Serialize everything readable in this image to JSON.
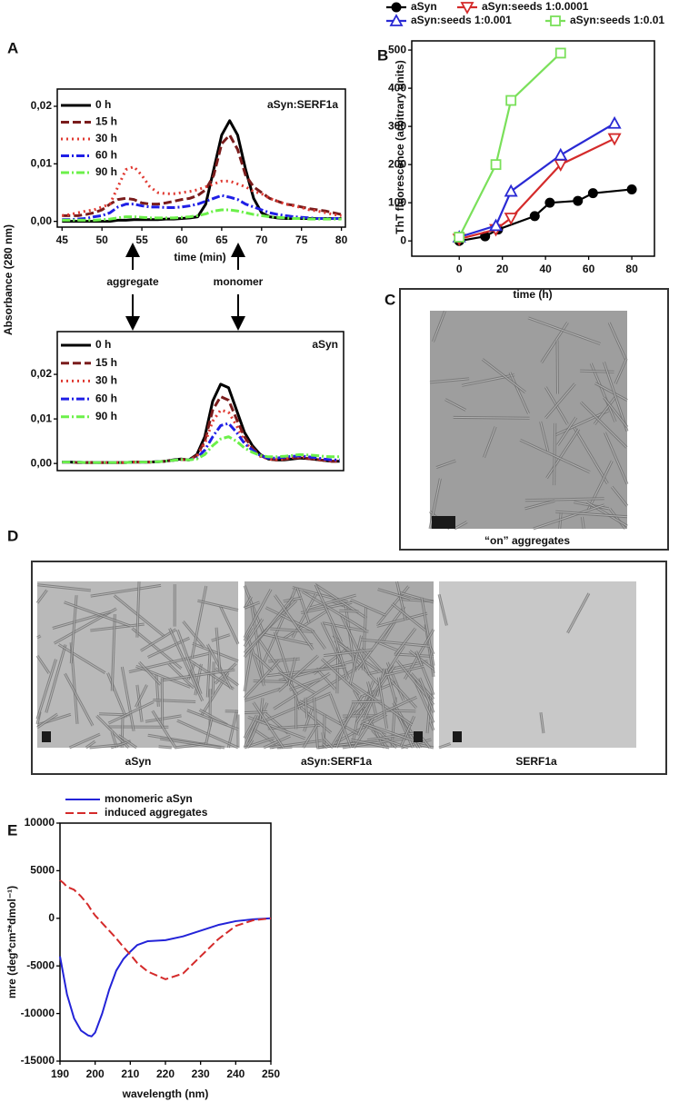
{
  "panel_labels": [
    "A",
    "B",
    "C",
    "D",
    "E"
  ],
  "panel_a": {
    "arrows": [
      "aggregate",
      "monomer"
    ]
  },
  "panel_c": {
    "caption": "“on” aggregates"
  },
  "panel_d": {
    "captions": [
      "aSyn",
      "aSyn:SERF1a",
      "SERF1a"
    ]
  },
  "chart_data": [
    {
      "type": "line",
      "y_label": "Absorbance (280 nm)",
      "x_label": "time (min)",
      "annotation": "aSyn:SERF1a",
      "x": [
        45,
        46,
        47,
        48,
        49,
        50,
        51,
        52,
        53,
        54,
        55,
        56,
        57,
        58,
        59,
        60,
        61,
        62,
        63,
        64,
        65,
        66,
        67,
        68,
        69,
        70,
        71,
        72,
        73,
        74,
        75,
        76,
        77,
        78,
        79,
        80
      ],
      "xlim": [
        44.4,
        80.5
      ],
      "xticks": [
        45,
        50,
        55,
        60,
        65,
        70,
        75,
        80
      ],
      "ylim": [
        -0.001,
        0.023
      ],
      "yticks": [
        {
          "value": 0,
          "label": "0,00"
        },
        {
          "value": 0.01,
          "label": "0,01"
        },
        {
          "value": 0.02,
          "label": "0,02"
        }
      ],
      "series": [
        {
          "name": "0 h",
          "color": "#000000",
          "dash": "solid",
          "values": [
            0,
            0,
            0,
            0,
            0,
            0,
            0,
            0.0002,
            0.0002,
            0.0003,
            0.0003,
            0.0003,
            0.0003,
            0.0004,
            0.0004,
            0.0005,
            0.0006,
            0.0008,
            0.003,
            0.009,
            0.015,
            0.0175,
            0.015,
            0.009,
            0.004,
            0.0015,
            0.0008,
            0.0006,
            0.0005,
            0.0005,
            0.0005,
            0.0005,
            0.0005,
            0.0005,
            0.0005,
            0.0005
          ]
        },
        {
          "name": "15 h",
          "color": "#7a1c1c",
          "dash": "dash",
          "values": [
            0.001,
            0.001,
            0.001,
            0.0012,
            0.0015,
            0.002,
            0.003,
            0.0038,
            0.004,
            0.0038,
            0.0032,
            0.003,
            0.003,
            0.0032,
            0.0035,
            0.0038,
            0.004,
            0.0045,
            0.0055,
            0.008,
            0.0135,
            0.015,
            0.0125,
            0.008,
            0.006,
            0.005,
            0.004,
            0.0035,
            0.003,
            0.0028,
            0.0025,
            0.0022,
            0.002,
            0.0018,
            0.0015,
            0.0012
          ]
        },
        {
          "name": "30 h",
          "color": "#e03a32",
          "dash": "dot",
          "values": [
            0.001,
            0.0012,
            0.0015,
            0.0018,
            0.002,
            0.0025,
            0.003,
            0.006,
            0.009,
            0.0095,
            0.008,
            0.006,
            0.005,
            0.0048,
            0.0048,
            0.005,
            0.0052,
            0.0055,
            0.006,
            0.0065,
            0.007,
            0.007,
            0.0065,
            0.006,
            0.0052,
            0.0048,
            0.004,
            0.0035,
            0.003,
            0.0027,
            0.0024,
            0.002,
            0.0018,
            0.0015,
            0.0012,
            0.001
          ]
        },
        {
          "name": "60 h",
          "color": "#1f1fe6",
          "dash": "dashdot",
          "values": [
            0.0003,
            0.0003,
            0.0004,
            0.0005,
            0.0008,
            0.001,
            0.0015,
            0.0025,
            0.003,
            0.003,
            0.0027,
            0.0025,
            0.0025,
            0.0024,
            0.0024,
            0.0025,
            0.0027,
            0.003,
            0.0035,
            0.004,
            0.0045,
            0.0042,
            0.0038,
            0.003,
            0.0025,
            0.002,
            0.0015,
            0.0012,
            0.001,
            0.0008,
            0.0007,
            0.0006,
            0.0005,
            0.0005,
            0.0005,
            0.0005
          ]
        },
        {
          "name": "90 h",
          "color": "#6cf04a",
          "dash": "dashdot",
          "values": [
            0.0002,
            0.0002,
            0.0002,
            0.0002,
            0.0002,
            0.0003,
            0.0004,
            0.0006,
            0.0008,
            0.0008,
            0.0007,
            0.0006,
            0.0006,
            0.0006,
            0.0006,
            0.0007,
            0.0008,
            0.001,
            0.0013,
            0.0018,
            0.002,
            0.002,
            0.0018,
            0.0015,
            0.0012,
            0.001,
            0.0008,
            0.0007,
            0.0006,
            0.0005,
            0.0005,
            0.0004,
            0.0004,
            0.0004,
            0.0004,
            0.0004
          ]
        }
      ]
    },
    {
      "type": "line",
      "annotation": "aSyn",
      "x": [
        45,
        46,
        47,
        48,
        49,
        50,
        51,
        52,
        53,
        54,
        55,
        56,
        57,
        58,
        59,
        60,
        61,
        62,
        63,
        64,
        65,
        66,
        67,
        68,
        69,
        70,
        71,
        72,
        73,
        74,
        75,
        76,
        77,
        78,
        79,
        80
      ],
      "xlim": [
        44.4,
        80.5
      ],
      "ylim": [
        -0.0016,
        0.0296
      ],
      "yticks": [
        {
          "value": 0,
          "label": "0,00"
        },
        {
          "value": 0.01,
          "label": "0,01"
        },
        {
          "value": 0.02,
          "label": "0,02"
        }
      ],
      "series": [
        {
          "name": "0 h",
          "color": "#000000",
          "dash": "solid",
          "values": [
            0.0003,
            0.0003,
            0.0002,
            0.0002,
            0.0002,
            0.0002,
            0.0002,
            0.0002,
            0.0002,
            0.0003,
            0.0003,
            0.0003,
            0.0004,
            0.0005,
            0.0008,
            0.001,
            0.0008,
            0.002,
            0.006,
            0.014,
            0.0178,
            0.017,
            0.012,
            0.007,
            0.004,
            0.002,
            0.001,
            0.0008,
            0.0008,
            0.001,
            0.0012,
            0.0011,
            0.0009,
            0.0007,
            0.0005,
            0.0005
          ]
        },
        {
          "name": "15 h",
          "color": "#7a1c1c",
          "dash": "dash",
          "values": [
            0.0003,
            0.0003,
            0.0002,
            0.0002,
            0.0002,
            0.0002,
            0.0002,
            0.0002,
            0.0002,
            0.0003,
            0.0003,
            0.0003,
            0.0004,
            0.0005,
            0.0007,
            0.0009,
            0.0008,
            0.0018,
            0.005,
            0.012,
            0.015,
            0.0142,
            0.01,
            0.006,
            0.0035,
            0.0018,
            0.001,
            0.0008,
            0.0009,
            0.0012,
            0.0013,
            0.0011,
            0.0009,
            0.0007,
            0.0005,
            0.0005
          ]
        },
        {
          "name": "30 h",
          "color": "#e03a32",
          "dash": "dot",
          "values": [
            0.0003,
            0.0003,
            0.0003,
            0.0002,
            0.0002,
            0.0002,
            0.0002,
            0.0002,
            0.0002,
            0.0003,
            0.0003,
            0.0003,
            0.0004,
            0.0005,
            0.0007,
            0.0009,
            0.0008,
            0.0016,
            0.0045,
            0.0095,
            0.012,
            0.0115,
            0.0085,
            0.005,
            0.003,
            0.0016,
            0.001,
            0.0009,
            0.001,
            0.0014,
            0.0015,
            0.0013,
            0.001,
            0.0008,
            0.0006,
            0.0006
          ]
        },
        {
          "name": "60 h",
          "color": "#1f1fe6",
          "dash": "dashdot",
          "values": [
            0.0003,
            0.0003,
            0.0003,
            0.0002,
            0.0002,
            0.0002,
            0.0002,
            0.0002,
            0.0002,
            0.0003,
            0.0003,
            0.0003,
            0.0004,
            0.0005,
            0.0007,
            0.0009,
            0.0008,
            0.0012,
            0.003,
            0.006,
            0.0085,
            0.009,
            0.007,
            0.0045,
            0.003,
            0.0018,
            0.0012,
            0.0012,
            0.0014,
            0.0016,
            0.0017,
            0.0015,
            0.0013,
            0.001,
            0.0008,
            0.0008
          ]
        },
        {
          "name": "90 h",
          "color": "#6cf04a",
          "dash": "dashdot",
          "values": [
            0.0003,
            0.0003,
            0.0003,
            0.0002,
            0.0002,
            0.0002,
            0.0002,
            0.0002,
            0.0002,
            0.0003,
            0.0003,
            0.0003,
            0.0004,
            0.0005,
            0.0007,
            0.0009,
            0.0008,
            0.001,
            0.002,
            0.004,
            0.0055,
            0.006,
            0.005,
            0.0035,
            0.0025,
            0.0018,
            0.0015,
            0.0015,
            0.0016,
            0.0018,
            0.002,
            0.0019,
            0.0018,
            0.0016,
            0.0015,
            0.0015
          ]
        }
      ]
    },
    {
      "type": "line",
      "y_label": "ThT fluorescence (arbitrary units)",
      "x_label": "time (h)",
      "xlim": [
        -22,
        90.5
      ],
      "xticks": [
        0,
        20,
        40,
        60,
        80
      ],
      "ylim": [
        -40,
        524
      ],
      "yticks": [
        0,
        100,
        200,
        300,
        400,
        500
      ],
      "series": [
        {
          "name": "aSyn",
          "color": "#000000",
          "marker": "circle",
          "x": [
            0,
            12,
            18,
            35,
            42,
            55,
            62,
            80
          ],
          "values": [
            0,
            12,
            30,
            65,
            100,
            105,
            125,
            135
          ]
        },
        {
          "name": "aSyn:seeds 1:0.0001",
          "color": "#d42a2a",
          "marker": "triangle-down",
          "x": [
            0,
            17,
            24,
            47,
            72
          ],
          "values": [
            5,
            30,
            60,
            200,
            268
          ]
        },
        {
          "name": "aSyn:seeds 1:0.001",
          "color": "#2a2ad4",
          "marker": "triangle-up",
          "x": [
            0,
            17,
            24,
            47,
            72
          ],
          "values": [
            10,
            40,
            130,
            225,
            308
          ]
        },
        {
          "name": "aSyn:seeds 1:0.01",
          "color": "#7ae05a",
          "marker": "square",
          "x": [
            0,
            17,
            24,
            47
          ],
          "values": [
            10,
            200,
            368,
            492
          ]
        }
      ]
    },
    {
      "type": "line",
      "y_label": "mre (deg*cm²*dmol⁻¹)",
      "x_label": "wavelength (nm)",
      "x": [
        190,
        191,
        192,
        194,
        196,
        198,
        199,
        200,
        202,
        204,
        206,
        208,
        210,
        212,
        215,
        220,
        225,
        230,
        235,
        240,
        245,
        250
      ],
      "xlim": [
        190,
        250
      ],
      "xticks": [
        190,
        200,
        210,
        220,
        230,
        240,
        250
      ],
      "ylim": [
        -15000,
        10000
      ],
      "yticks": [
        -15000,
        -10000,
        -5000,
        0,
        5000,
        10000
      ],
      "series": [
        {
          "name": "monomeric aSyn",
          "color": "#2323d8",
          "dash": "solid",
          "values": [
            -4000,
            -6000,
            -8000,
            -10500,
            -11800,
            -12300,
            -12400,
            -12000,
            -10000,
            -7500,
            -5500,
            -4300,
            -3500,
            -2800,
            -2400,
            -2300,
            -1900,
            -1300,
            -700,
            -300,
            -100,
            0
          ]
        },
        {
          "name": "induced aggregates",
          "color": "#d42a2a",
          "dash": "dash",
          "values": [
            4000,
            3700,
            3300,
            3000,
            2300,
            1400,
            800,
            300,
            -500,
            -1300,
            -2100,
            -3000,
            -3800,
            -4700,
            -5600,
            -6400,
            -5800,
            -4000,
            -2200,
            -800,
            -200,
            0
          ]
        }
      ]
    }
  ]
}
